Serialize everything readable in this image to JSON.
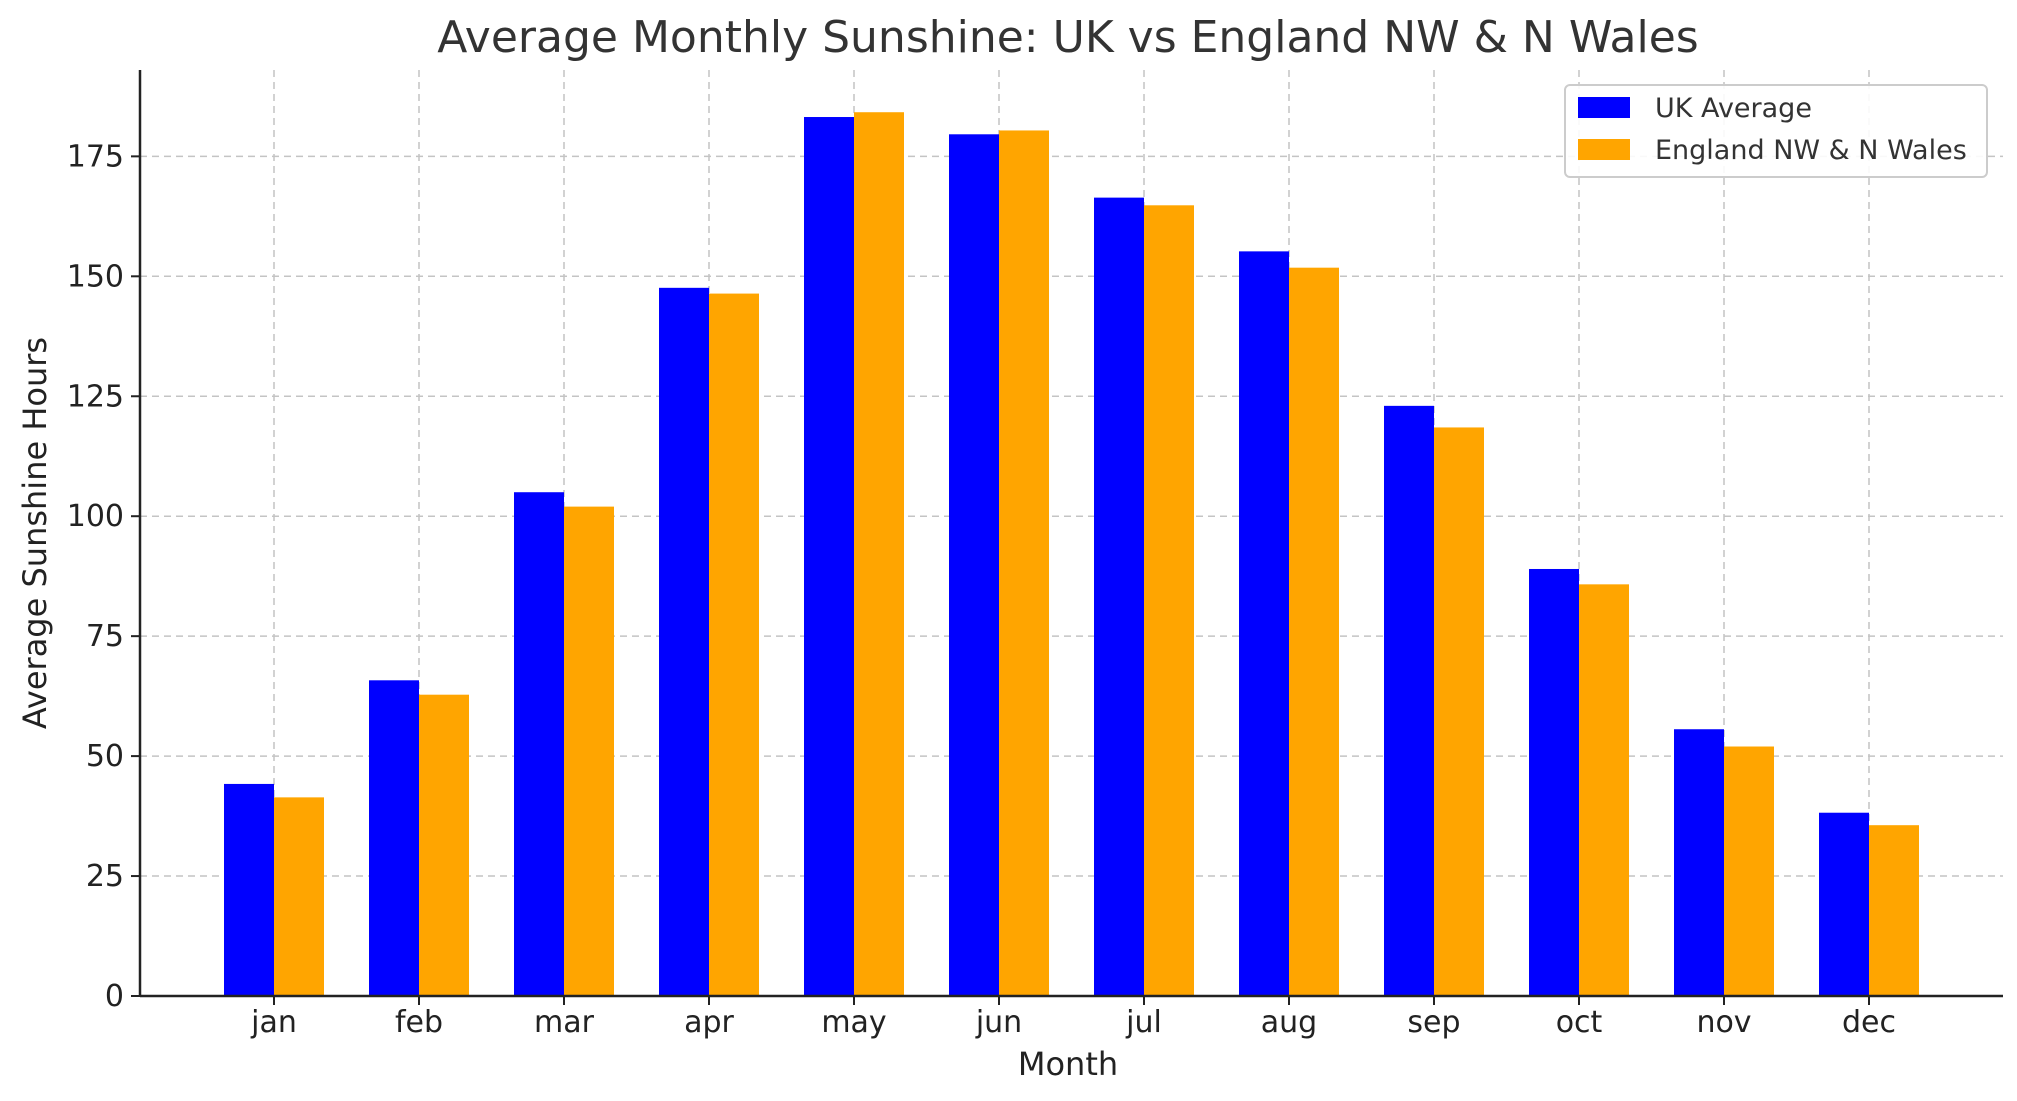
{
  "chart_data": {
    "type": "bar",
    "title": "Average Monthly Sunshine: UK vs England NW & N Wales",
    "xlabel": "Month",
    "ylabel": "Average Sunshine Hours",
    "categories": [
      "jan",
      "feb",
      "mar",
      "apr",
      "may",
      "jun",
      "jul",
      "aug",
      "sep",
      "oct",
      "nov",
      "dec"
    ],
    "series": [
      {
        "name": "UK Average",
        "color": "#0000ff",
        "values": [
          44.2,
          65.8,
          105.0,
          147.6,
          183.2,
          179.6,
          166.4,
          155.2,
          123.0,
          89.0,
          55.6,
          38.2
        ]
      },
      {
        "name": "England NW & N Wales",
        "color": "#ffa500",
        "values": [
          41.4,
          62.8,
          102.0,
          146.4,
          184.2,
          180.4,
          164.8,
          151.8,
          118.5,
          85.8,
          52.0,
          35.6
        ]
      }
    ],
    "ylim": [
      0,
      193
    ],
    "yticks": [
      0,
      25,
      50,
      75,
      100,
      125,
      150,
      175
    ],
    "grid": true,
    "legend_position": "top-right"
  }
}
